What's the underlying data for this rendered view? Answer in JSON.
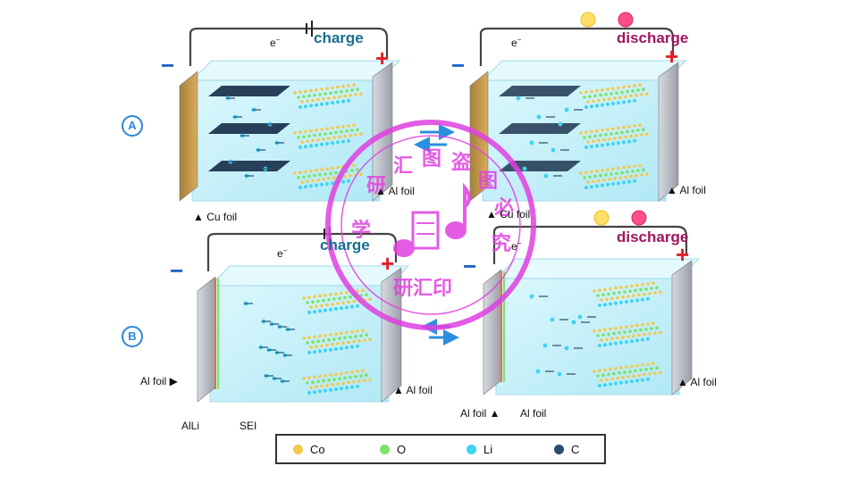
{
  "row_labels": [
    "A",
    "B"
  ],
  "panels": {
    "a_charge": {
      "mode": "charge",
      "electron": "e",
      "electron_sup": "−",
      "minus": "−",
      "plus": "+"
    },
    "a_discharge": {
      "mode": "discharge",
      "electron": "e",
      "electron_sup": "−",
      "minus": "−",
      "plus": "+"
    },
    "b_charge": {
      "mode": "charge",
      "electron": "e",
      "electron_sup": "−",
      "minus": "−",
      "plus": "+"
    },
    "b_discharge": {
      "mode": "discharge",
      "electron": "e",
      "electron_sup": "−",
      "minus": "−",
      "plus": "+"
    }
  },
  "labels": {
    "a_cu_foil": "▲ Cu foil",
    "a_al_foil_center": "▲ Al foil",
    "a_cu_foil_right": "▲ Cu foil",
    "a_al_foil_right": "▲ Al foil",
    "b_al_foil_left": "Al foil ▶",
    "b_al_foil_center": "▲ Al foil",
    "b_alli": "AlLi",
    "b_sei": "SEI",
    "b_al_foil_bottom_a": "Al foil ▲",
    "b_al_foil_bottom_b": "Al foil",
    "b_al_foil_right": "▲ Al foil"
  },
  "legend": [
    {
      "label": "Co",
      "color": "#f2c94c"
    },
    {
      "label": "O",
      "color": "#7be26a"
    },
    {
      "label": "Li",
      "color": "#3fd4f0"
    },
    {
      "label": "C",
      "color": "#2c4a6e"
    }
  ],
  "watermark": {
    "ring_chars": [
      "学",
      "研",
      "汇",
      "图",
      "盗",
      "图",
      "必",
      "究"
    ],
    "bottom_text": "研汇印",
    "color": "#e040e0"
  },
  "colors": {
    "electrolyte": "#bfeffb",
    "cu_foil": "#c79a4f",
    "al_foil": "#b9bcc4",
    "graphite": "#1f3550",
    "li_ion": "#3fd4f0",
    "wire": "#444444"
  }
}
